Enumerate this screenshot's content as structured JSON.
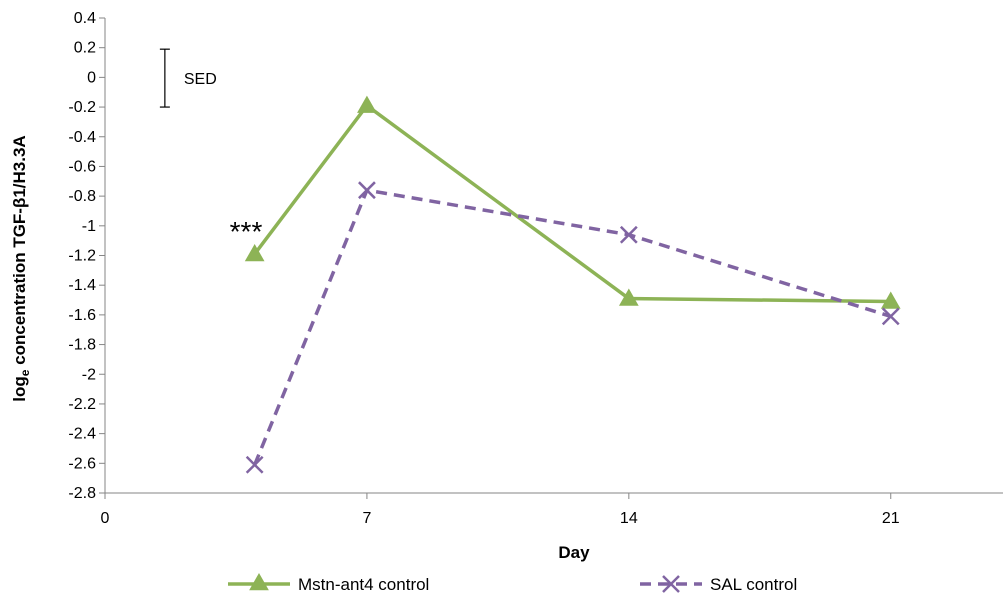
{
  "chart_data": {
    "type": "line",
    "title": "",
    "xlabel": "Day",
    "ylabel": {
      "prefix": "log",
      "subscript": "e",
      "suffix": " concentration  TGF-β1/H3.3A"
    },
    "xlim": [
      0,
      24
    ],
    "ylim": [
      -2.8,
      0.4
    ],
    "x_ticks": [
      0,
      7,
      14,
      21
    ],
    "y_ticks": [
      0.4,
      0.2,
      0,
      -0.2,
      -0.4,
      -0.6,
      -0.8,
      -1,
      -1.2,
      -1.4,
      -1.6,
      -1.8,
      -2,
      -2.2,
      -2.4,
      -2.6,
      -2.8
    ],
    "x_tick_labels": [
      "0",
      "7",
      "14",
      "21"
    ],
    "y_tick_labels": [
      "0.4",
      "0.2",
      "0",
      "-0.2",
      "-0.4",
      "-0.6",
      "-0.8",
      "-1",
      "-1.2",
      "-1.4",
      "-1.6",
      "-1.8",
      "-2",
      "-2.2",
      "-2.4",
      "-2.6",
      "-2.8"
    ],
    "grid": false,
    "legend_position": "bottom",
    "series": [
      {
        "name": "Mstn-ant4 control",
        "color": "#8DB356",
        "style": "solid",
        "marker": "triangle",
        "x": [
          4,
          7,
          14,
          21
        ],
        "y": [
          -1.19,
          -0.19,
          -1.49,
          -1.51
        ]
      },
      {
        "name": "SAL control",
        "color": "#8064A2",
        "style": "dashed",
        "marker": "x",
        "x": [
          4,
          7,
          14,
          21
        ],
        "y": [
          -2.61,
          -0.76,
          -1.06,
          -1.61
        ]
      }
    ],
    "annotations": [
      {
        "text": "***",
        "x": 4,
        "y": -1.19
      },
      {
        "text": "SED",
        "error_bar": [
          -0.2,
          0.19
        ],
        "x": 1.6
      }
    ]
  }
}
